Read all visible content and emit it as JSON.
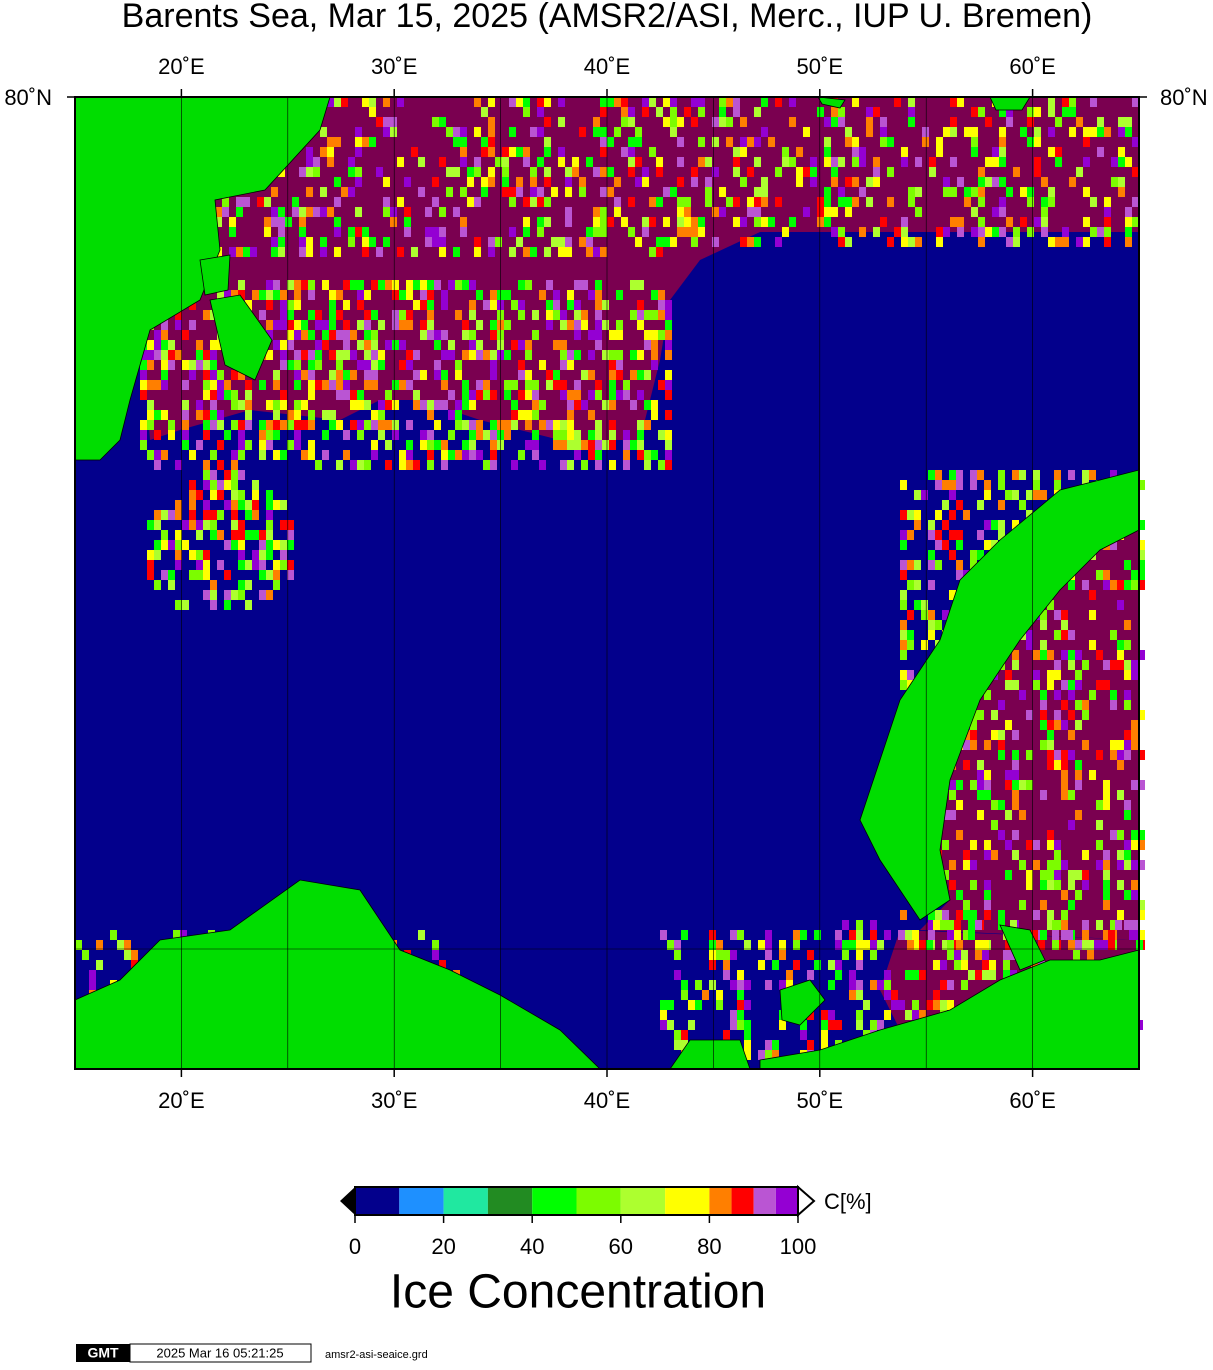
{
  "title": "Barents Sea, Mar 15, 2025 (AMSR2/ASI, Merc., IUP U. Bremen)",
  "map": {
    "xlim": [
      15,
      65
    ],
    "xticks": [
      {
        "value": 20,
        "label": "20˚E"
      },
      {
        "value": 30,
        "label": "30˚E"
      },
      {
        "value": 40,
        "label": "40˚E"
      },
      {
        "value": 50,
        "label": "50˚E"
      },
      {
        "value": 60,
        "label": "60˚E"
      }
    ],
    "xgrid": [
      20,
      25,
      30,
      35,
      40,
      45,
      50,
      55,
      60
    ],
    "lat_label": "80˚N"
  },
  "colorbar": {
    "label": "Ice Concentration",
    "unit": "C[%]",
    "lim": [
      0,
      100
    ],
    "ticks": [
      0,
      20,
      40,
      60,
      80,
      100
    ],
    "bins": [
      0,
      10,
      20,
      30,
      40,
      50,
      60,
      70,
      80,
      85,
      90,
      95,
      100
    ],
    "colors": [
      "#03008c",
      "#1e90ff",
      "#20e8a0",
      "#228b22",
      "#00ff00",
      "#7cfc00",
      "#adff2f",
      "#ffff00",
      "#ff7f00",
      "#ff0000",
      "#ba55d3",
      "#9400d3"
    ]
  },
  "footer": {
    "logo": "GMT",
    "timestamp": "2025 Mar 16 05:21:25",
    "file": "amsr2-asi-seaice.grd"
  }
}
